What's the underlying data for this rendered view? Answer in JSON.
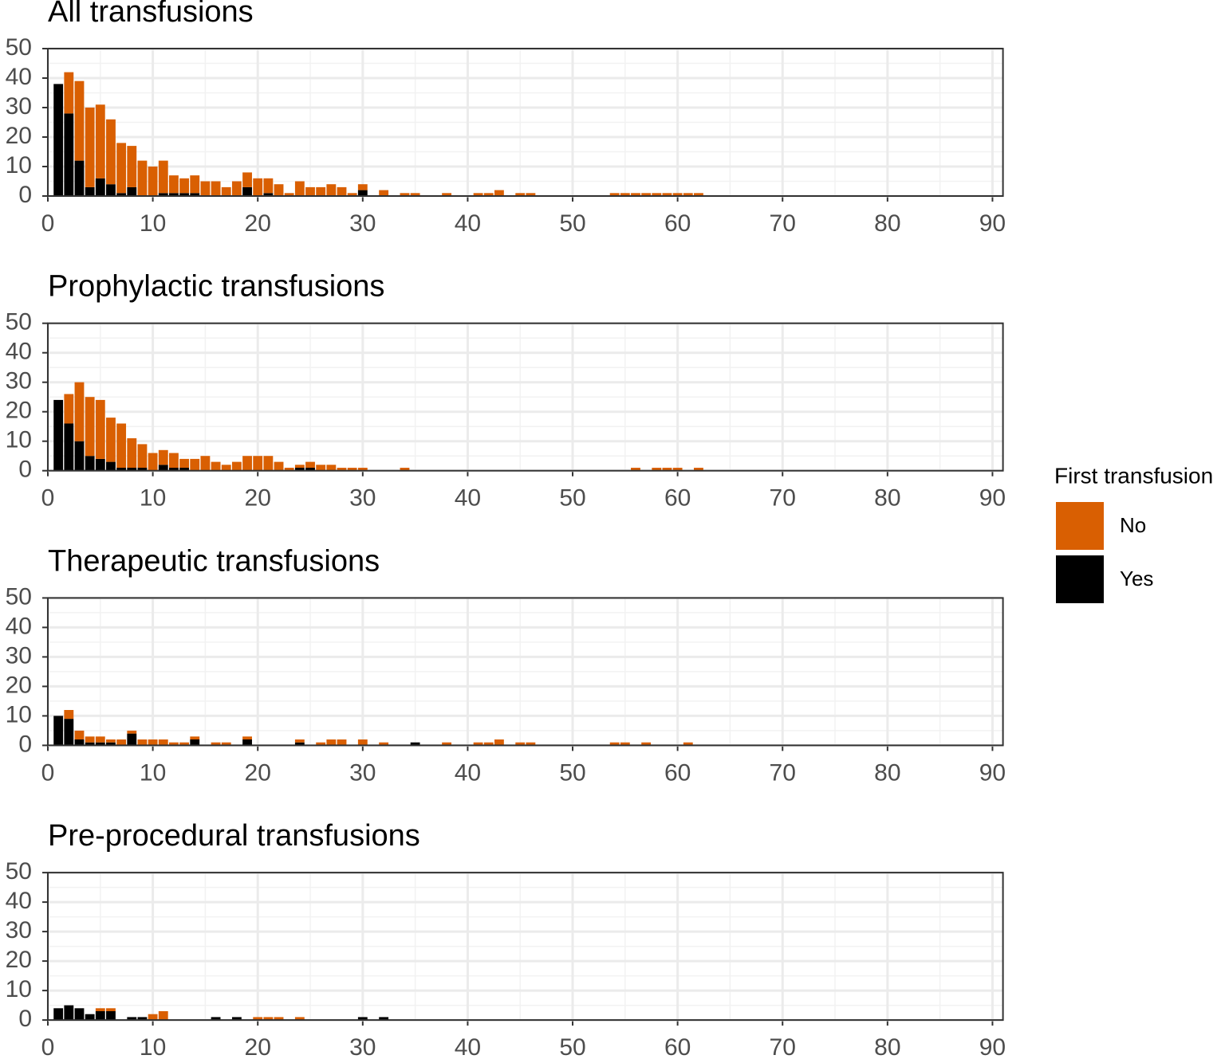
{
  "legend": {
    "title": "First transfusion",
    "position": "right"
  },
  "chart_data": [
    {
      "type": "bar",
      "stacked": true,
      "title": "All transfusions",
      "x": [
        1,
        2,
        3,
        4,
        5,
        6,
        7,
        8,
        9,
        10,
        11,
        12,
        13,
        14,
        15,
        16,
        17,
        18,
        19,
        20,
        21,
        22,
        23,
        24,
        25,
        26,
        27,
        28,
        29,
        30,
        31,
        32,
        33,
        34,
        35,
        36,
        37,
        38,
        39,
        40,
        41,
        42,
        43,
        44,
        45,
        46,
        47,
        48,
        49,
        50,
        51,
        52,
        53,
        54,
        55,
        56,
        57,
        58,
        59,
        60,
        61,
        62
      ],
      "series": [
        {
          "name": "No",
          "color": "#d95f02",
          "values": [
            0,
            14,
            27,
            27,
            25,
            22,
            17,
            14,
            12,
            10,
            11,
            6,
            5,
            6,
            5,
            5,
            3,
            5,
            5,
            6,
            5,
            4,
            1,
            5,
            3,
            3,
            4,
            3,
            1,
            2,
            0,
            2,
            0,
            1,
            1,
            0,
            0,
            1,
            0,
            0,
            1,
            1,
            2,
            0,
            1,
            1,
            0,
            0,
            0,
            0,
            0,
            0,
            0,
            1,
            1,
            1,
            1,
            1,
            1,
            1,
            1,
            1
          ]
        },
        {
          "name": "Yes",
          "color": "#000000",
          "values": [
            38,
            28,
            12,
            3,
            6,
            4,
            1,
            3,
            0,
            0,
            1,
            1,
            1,
            1,
            0,
            0,
            0,
            0,
            3,
            0,
            1,
            0,
            0,
            0,
            0,
            0,
            0,
            0,
            0,
            2,
            0,
            0,
            0,
            0,
            0,
            0,
            0,
            0,
            0,
            0,
            0,
            0,
            0,
            0,
            0,
            0,
            0,
            0,
            0,
            0,
            0,
            0,
            0,
            0,
            0,
            0,
            0,
            0,
            0,
            0,
            0,
            0
          ]
        }
      ],
      "xlim": [
        0,
        91
      ],
      "xticks": [
        0,
        10,
        20,
        30,
        40,
        50,
        60,
        70,
        80,
        90
      ],
      "ylim": [
        0,
        50
      ],
      "yticks": [
        0,
        10,
        20,
        30,
        40,
        50
      ],
      "grid": true
    },
    {
      "type": "bar",
      "stacked": true,
      "title": "Prophylactic transfusions",
      "x": [
        1,
        2,
        3,
        4,
        5,
        6,
        7,
        8,
        9,
        10,
        11,
        12,
        13,
        14,
        15,
        16,
        17,
        18,
        19,
        20,
        21,
        22,
        23,
        24,
        25,
        26,
        27,
        28,
        29,
        30,
        31,
        32,
        33,
        34,
        35,
        36,
        37,
        38,
        39,
        40,
        41,
        42,
        43,
        44,
        45,
        46,
        47,
        48,
        49,
        50,
        51,
        52,
        53,
        54,
        55,
        56,
        57,
        58,
        59,
        60,
        61,
        62
      ],
      "series": [
        {
          "color": "#d95f02",
          "values": [
            0,
            10,
            20,
            20,
            20,
            15,
            15,
            10,
            8,
            6,
            5,
            5,
            3,
            4,
            5,
            3,
            2,
            3,
            5,
            5,
            5,
            3,
            1,
            1,
            2,
            2,
            2,
            1,
            1,
            1,
            0,
            0,
            0,
            1,
            0,
            0,
            0,
            0,
            0,
            0,
            0,
            0,
            0,
            0,
            0,
            0,
            0,
            0,
            0,
            0,
            0,
            0,
            0,
            0,
            0,
            1,
            0,
            1,
            1,
            1,
            0,
            1
          ]
        },
        {
          "color": "#000000",
          "values": [
            24,
            16,
            10,
            5,
            4,
            3,
            1,
            1,
            1,
            0,
            2,
            1,
            1,
            0,
            0,
            0,
            0,
            0,
            0,
            0,
            0,
            0,
            0,
            1,
            1,
            0,
            0,
            0,
            0,
            0,
            0,
            0,
            0,
            0,
            0,
            0,
            0,
            0,
            0,
            0,
            0,
            0,
            0,
            0,
            0,
            0,
            0,
            0,
            0,
            0,
            0,
            0,
            0,
            0,
            0,
            0,
            0,
            0,
            0,
            0,
            0,
            0
          ]
        }
      ],
      "xlim": [
        0,
        91
      ],
      "xticks": [
        0,
        10,
        20,
        30,
        40,
        50,
        60,
        70,
        80,
        90
      ],
      "ylim": [
        0,
        50
      ],
      "yticks": [
        0,
        10,
        20,
        30,
        40,
        50
      ],
      "grid": true
    },
    {
      "type": "bar",
      "stacked": true,
      "title": "Therapeutic transfusions",
      "x": [
        1,
        2,
        3,
        4,
        5,
        6,
        7,
        8,
        9,
        10,
        11,
        12,
        13,
        14,
        15,
        16,
        17,
        18,
        19,
        20,
        21,
        22,
        23,
        24,
        25,
        26,
        27,
        28,
        29,
        30,
        31,
        32,
        33,
        34,
        35,
        36,
        37,
        38,
        39,
        40,
        41,
        42,
        43,
        44,
        45,
        46,
        47,
        48,
        49,
        50,
        51,
        52,
        53,
        54,
        55,
        56,
        57,
        58,
        59,
        60,
        61,
        62
      ],
      "series": [
        {
          "color": "#d95f02",
          "values": [
            0,
            3,
            3,
            2,
            2,
            1,
            2,
            1,
            2,
            2,
            2,
            1,
            1,
            1,
            0,
            1,
            1,
            0,
            1,
            0,
            0,
            0,
            0,
            1,
            0,
            1,
            2,
            2,
            0,
            2,
            0,
            1,
            0,
            0,
            0,
            0,
            0,
            1,
            0,
            0,
            1,
            1,
            2,
            0,
            1,
            1,
            0,
            0,
            0,
            0,
            0,
            0,
            0,
            1,
            1,
            0,
            1,
            0,
            0,
            0,
            1,
            0
          ]
        },
        {
          "color": "#000000",
          "values": [
            10,
            9,
            2,
            1,
            1,
            1,
            0,
            4,
            0,
            0,
            0,
            0,
            0,
            2,
            0,
            0,
            0,
            0,
            2,
            0,
            0,
            0,
            0,
            1,
            0,
            0,
            0,
            0,
            0,
            0,
            0,
            0,
            0,
            0,
            1,
            0,
            0,
            0,
            0,
            0,
            0,
            0,
            0,
            0,
            0,
            0,
            0,
            0,
            0,
            0,
            0,
            0,
            0,
            0,
            0,
            0,
            0,
            0,
            0,
            0,
            0,
            0
          ]
        }
      ],
      "xlim": [
        0,
        91
      ],
      "xticks": [
        0,
        10,
        20,
        30,
        40,
        50,
        60,
        70,
        80,
        90
      ],
      "ylim": [
        0,
        50
      ],
      "yticks": [
        0,
        10,
        20,
        30,
        40,
        50
      ],
      "grid": true
    },
    {
      "type": "bar",
      "stacked": true,
      "title": "Pre-procedural transfusions",
      "x": [
        1,
        2,
        3,
        4,
        5,
        6,
        7,
        8,
        9,
        10,
        11,
        12,
        13,
        14,
        15,
        16,
        17,
        18,
        19,
        20,
        21,
        22,
        23,
        24,
        25,
        26,
        27,
        28,
        29,
        30,
        31,
        32,
        33,
        34,
        35,
        36,
        37,
        38,
        39,
        40,
        41,
        42,
        43,
        44,
        45,
        46,
        47,
        48,
        49,
        50,
        51,
        52,
        53,
        54,
        55,
        56,
        57,
        58,
        59,
        60,
        61,
        62
      ],
      "series": [
        {
          "color": "#d95f02",
          "values": [
            0,
            0,
            0,
            0,
            1,
            1,
            0,
            0,
            0,
            2,
            3,
            0,
            0,
            0,
            0,
            0,
            0,
            0,
            0,
            1,
            1,
            1,
            0,
            1,
            0,
            0,
            0,
            0,
            0,
            0,
            0,
            0,
            0,
            0,
            0,
            0,
            0,
            0,
            0,
            0,
            0,
            0,
            0,
            0,
            0,
            0,
            0,
            0,
            0,
            0,
            0,
            0,
            0,
            0,
            0,
            0,
            0,
            0,
            0,
            0,
            0,
            0
          ]
        },
        {
          "color": "#000000",
          "values": [
            4,
            5,
            4,
            2,
            3,
            3,
            0,
            1,
            1,
            0,
            0,
            0,
            0,
            0,
            0,
            1,
            0,
            1,
            0,
            0,
            0,
            0,
            0,
            0,
            0,
            0,
            0,
            0,
            0,
            1,
            0,
            1,
            0,
            0,
            0,
            0,
            0,
            0,
            0,
            0,
            0,
            0,
            0,
            0,
            0,
            0,
            0,
            0,
            0,
            0,
            0,
            0,
            0,
            0,
            0,
            0,
            0,
            0,
            0,
            0,
            0,
            0
          ]
        }
      ],
      "xlim": [
        0,
        91
      ],
      "xticks": [
        0,
        10,
        20,
        30,
        40,
        50,
        60,
        70,
        80,
        90
      ],
      "ylim": [
        0,
        50
      ],
      "yticks": [
        0,
        10,
        20,
        30,
        40,
        50
      ],
      "grid": true
    }
  ]
}
